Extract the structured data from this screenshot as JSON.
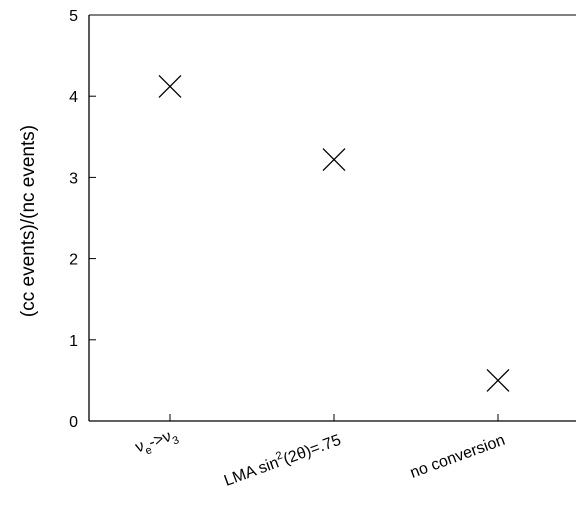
{
  "chart_data": {
    "type": "scatter",
    "title": "",
    "xlabel": "",
    "ylabel": "(cc events)/(nc events)",
    "ylim": [
      0,
      5
    ],
    "yticks": [
      "0",
      "1",
      "2",
      "3",
      "4",
      "5"
    ],
    "categories": [
      {
        "base": "ν",
        "sub": "e",
        "mid": "->ν",
        "sub2": "3"
      },
      {
        "base": "LMA sin",
        "sup": "2",
        "tail": "(2θ)=.75"
      },
      {
        "base": "no conversion"
      }
    ],
    "values": [
      4.12,
      3.22,
      0.5
    ],
    "marker": "x",
    "marker_color": "#000000",
    "grid": false
  }
}
